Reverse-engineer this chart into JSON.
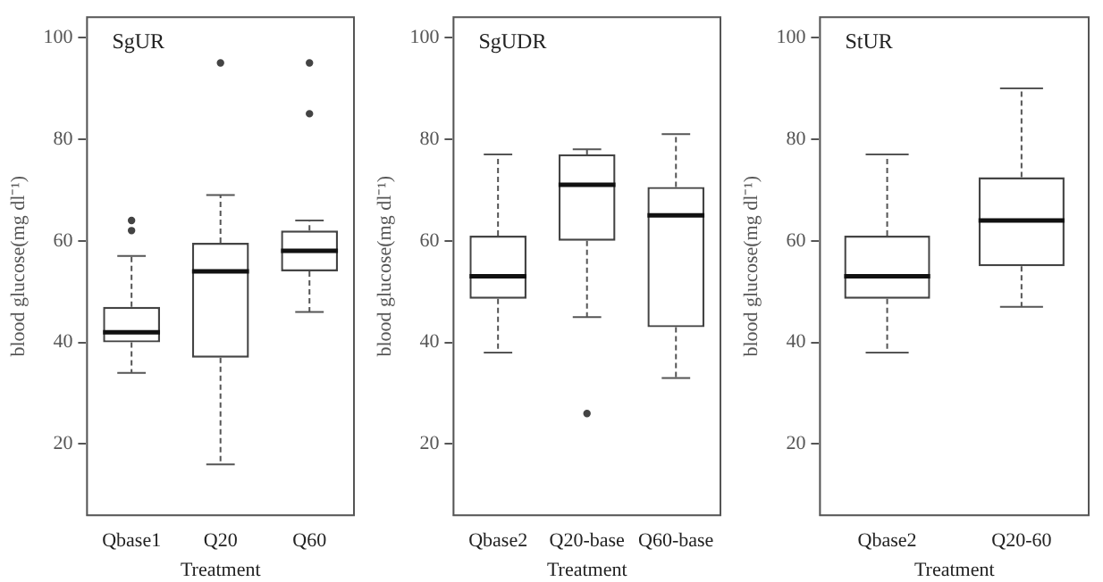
{
  "chart_data": [
    {
      "type": "box",
      "title": "SgUR",
      "xlabel": "Treatment",
      "ylabel": "blood glucose(mg dl⁻¹)",
      "categories": [
        "Qbase1",
        "Q20",
        "Q60"
      ],
      "ylim": [
        6,
        104
      ],
      "yticks": [
        20,
        40,
        60,
        80,
        100
      ],
      "grid": false,
      "legend": false,
      "boxes": [
        {
          "low": 34,
          "q1": 40,
          "median": 42,
          "q3": 47,
          "high": 57,
          "outliers": [
            62,
            64
          ]
        },
        {
          "low": 16,
          "q1": 37,
          "median": 54,
          "q3": 59.6,
          "high": 69,
          "outliers": [
            95
          ]
        },
        {
          "low": 46,
          "q1": 54,
          "median": 58,
          "q3": 62,
          "high": 64,
          "outliers": [
            85,
            95
          ]
        }
      ]
    },
    {
      "type": "box",
      "title": "SgUDR",
      "xlabel": "Treatment",
      "ylabel": "blood glucose(mg dl⁻¹)",
      "categories": [
        "Qbase2",
        "Q20-base",
        "Q60-base"
      ],
      "ylim": [
        6,
        104
      ],
      "yticks": [
        20,
        40,
        60,
        80,
        100
      ],
      "grid": false,
      "legend": false,
      "boxes": [
        {
          "low": 38,
          "q1": 48.6,
          "median": 53,
          "q3": 61,
          "high": 77
        },
        {
          "low": 45,
          "q1": 60,
          "median": 71,
          "q3": 77,
          "high": 78,
          "outliers": [
            26
          ]
        },
        {
          "low": 33,
          "q1": 43,
          "median": 65,
          "q3": 70.6,
          "high": 81
        }
      ]
    },
    {
      "type": "box",
      "title": "StUR",
      "xlabel": "Treatment",
      "ylabel": "blood glucose(mg dl⁻¹)",
      "categories": [
        "Qbase2",
        "Q20-60"
      ],
      "ylim": [
        6,
        104
      ],
      "yticks": [
        20,
        40,
        60,
        80,
        100
      ],
      "grid": false,
      "legend": false,
      "boxes": [
        {
          "low": 38,
          "q1": 48.6,
          "median": 53,
          "q3": 61,
          "high": 77
        },
        {
          "low": 47,
          "q1": 55,
          "median": 64,
          "q3": 72.5,
          "high": 90
        }
      ]
    }
  ]
}
